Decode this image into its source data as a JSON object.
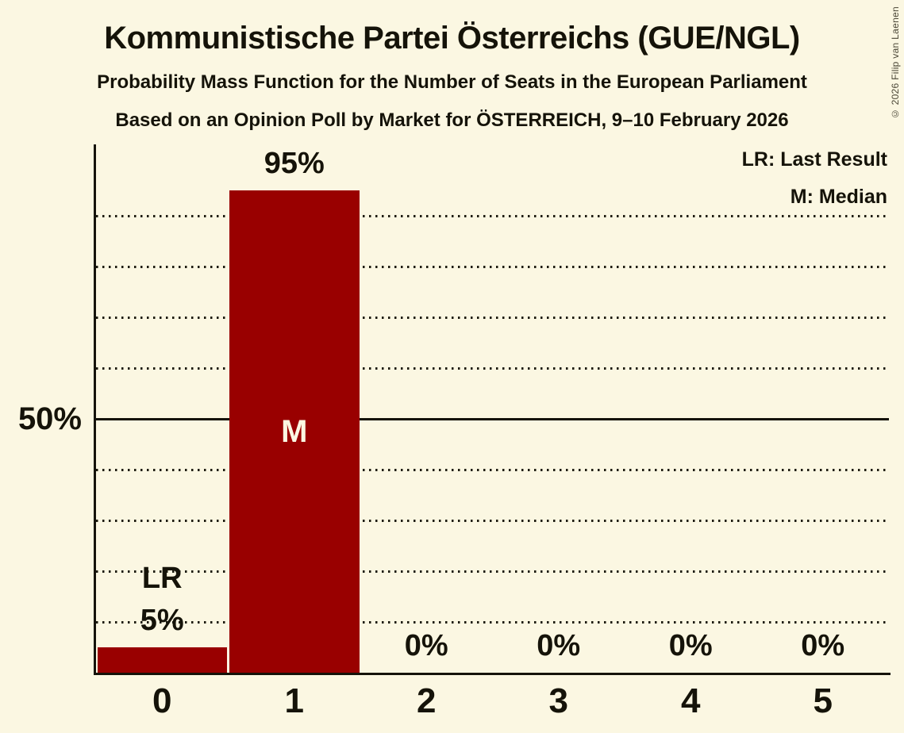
{
  "title": "Kommunistische Partei Österreichs (GUE/NGL)",
  "subtitle1": "Probability Mass Function for the Number of Seats in the European Parliament",
  "subtitle2": "Based on an Opinion Poll by Market for ÖSTERREICH, 9–10 February 2026",
  "copyright": "© 2026 Filip van Laenen",
  "legend": {
    "last_result": "LR: Last Result",
    "median": "M: Median"
  },
  "y_axis": {
    "tick_label": "50%",
    "tick_value": 50
  },
  "colors": {
    "background": "#FBF7E2",
    "bar": "#990000",
    "text": "#151309",
    "inside_bar_label": "#FBF7E2"
  },
  "chart_data": {
    "type": "bar",
    "title": "Kommunistische Partei Österreichs (GUE/NGL)",
    "subtitle": "Probability Mass Function for the Number of Seats in the European Parliament",
    "source_line": "Based on an Opinion Poll by Market for ÖSTERREICH, 9–10 February 2026",
    "categories": [
      "0",
      "1",
      "2",
      "3",
      "4",
      "5"
    ],
    "values": [
      5,
      95,
      0,
      0,
      0,
      0
    ],
    "value_labels": [
      "5%",
      "95%",
      "0%",
      "0%",
      "0%",
      "0%"
    ],
    "xlabel": "",
    "ylabel": "",
    "ylim": [
      0,
      104
    ],
    "gridlines_dotted_pct": [
      10,
      20,
      30,
      40,
      60,
      70,
      80,
      90
    ],
    "gridline_solid_pct": 50,
    "y_tick_labels": [
      "50%"
    ],
    "grid": "horizontal-dotted",
    "legend_position": "top-right",
    "annotations": [
      {
        "category": "0",
        "label": "LR",
        "meaning": "Last Result",
        "placement": "above-bar"
      },
      {
        "category": "1",
        "label": "M",
        "meaning": "Median",
        "placement": "inside-bar"
      }
    ]
  }
}
